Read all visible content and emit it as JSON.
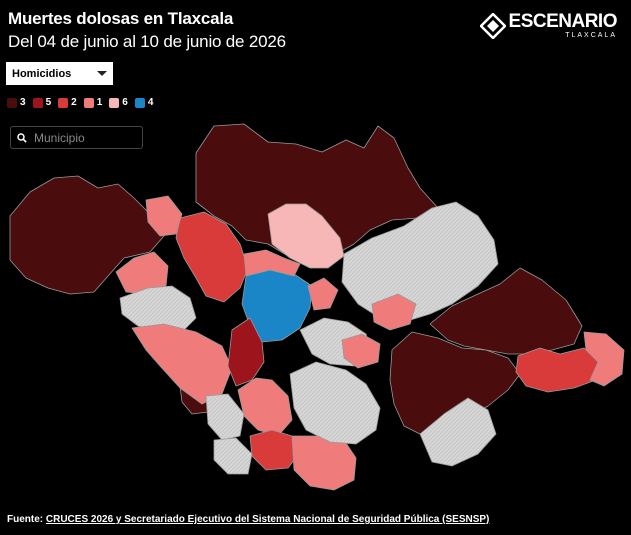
{
  "header": {
    "title": "Muertes dolosas en Tlaxcala",
    "subtitle": "Del 04 de junio al 10 de junio de 2026"
  },
  "logo": {
    "name": "ESCENARIO",
    "sub": "TLAXCALA",
    "icon": "diamond-logo-icon"
  },
  "filter": {
    "selected": "Homicidios"
  },
  "legend": [
    {
      "label": "3",
      "color": "#4a0c0c"
    },
    {
      "label": "5",
      "color": "#9e141c"
    },
    {
      "label": "2",
      "color": "#d93a3a"
    },
    {
      "label": "1",
      "color": "#ef7b7b"
    },
    {
      "label": "6",
      "color": "#f7b7b7"
    },
    {
      "label": "4",
      "color": "#1a86c8"
    }
  ],
  "search": {
    "placeholder": "Municipio",
    "value": ""
  },
  "footer": {
    "prefix": "Fuente: ",
    "link": "CRUCES 2026 y Secretariado Ejecutivo del Sistema Nacional de Seguridad Pública (SESNSP)"
  },
  "colors": {
    "background": "#000000",
    "no_data": "#d6d6d6",
    "border": "#9a9a9a"
  }
}
